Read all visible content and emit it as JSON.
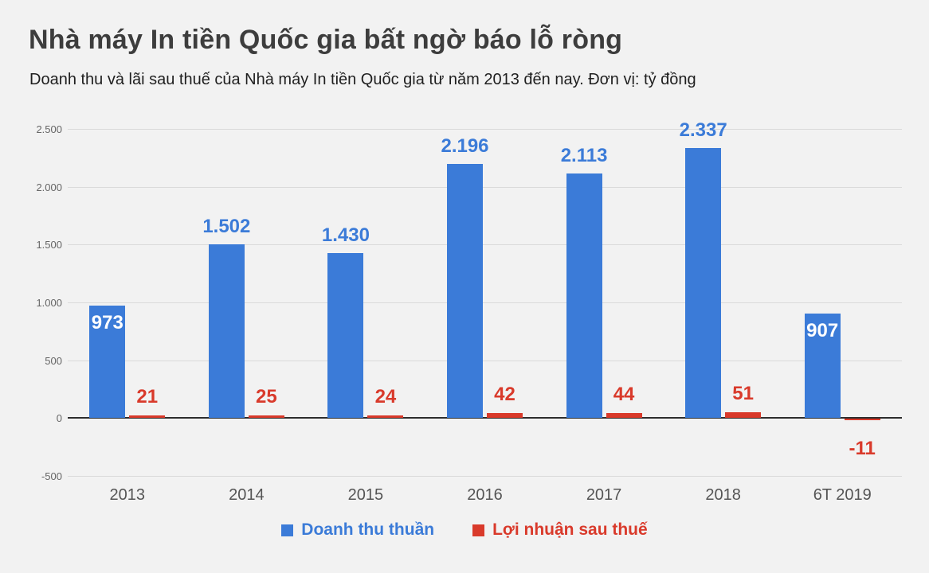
{
  "page": {
    "title": "Nhà máy In tiền Quốc gia bất ngờ báo lỗ ròng",
    "subtitle": "Doanh thu và lãi sau thuế của Nhà máy In tiền Quốc gia từ năm 2013 đến nay. Đơn vị: tỷ đồng"
  },
  "chart_data": {
    "type": "bar",
    "title": "Nhà máy In tiền Quốc gia bất ngờ báo lỗ ròng",
    "subtitle": "Doanh thu và lãi sau thuế của Nhà máy In tiền Quốc gia từ năm 2013 đến nay. Đơn vị: tỷ đồng",
    "unit": "tỷ đồng",
    "categories": [
      "2013",
      "2014",
      "2015",
      "2016",
      "2017",
      "2018",
      "6T 2019"
    ],
    "series": [
      {
        "name": "Doanh thu thuần",
        "color": "#3b7bd8",
        "values": [
          973,
          1502,
          1430,
          2196,
          2113,
          2337,
          907
        ],
        "labels": [
          "973",
          "1.502",
          "1.430",
          "2.196",
          "2.113",
          "2.337",
          "907"
        ],
        "label_inside": [
          true,
          false,
          false,
          false,
          false,
          false,
          true
        ]
      },
      {
        "name": "Lợi nhuận sau thuế",
        "color": "#d93a2b",
        "values": [
          21,
          25,
          24,
          42,
          44,
          51,
          -11
        ],
        "labels": [
          "21",
          "25",
          "24",
          "42",
          "44",
          "51",
          "-11"
        ],
        "label_inside": [
          false,
          false,
          false,
          false,
          false,
          false,
          false
        ]
      }
    ],
    "ylim": [
      -500,
      2500
    ],
    "yticks": [
      {
        "value": 2500,
        "label": "2.500"
      },
      {
        "value": 2000,
        "label": "2.000"
      },
      {
        "value": 1500,
        "label": "1.500"
      },
      {
        "value": 1000,
        "label": "1.000"
      },
      {
        "value": 500,
        "label": "500"
      },
      {
        "value": 0,
        "label": "0"
      },
      {
        "value": -500,
        "label": "-500"
      }
    ],
    "grid": true,
    "legend_position": "bottom"
  }
}
